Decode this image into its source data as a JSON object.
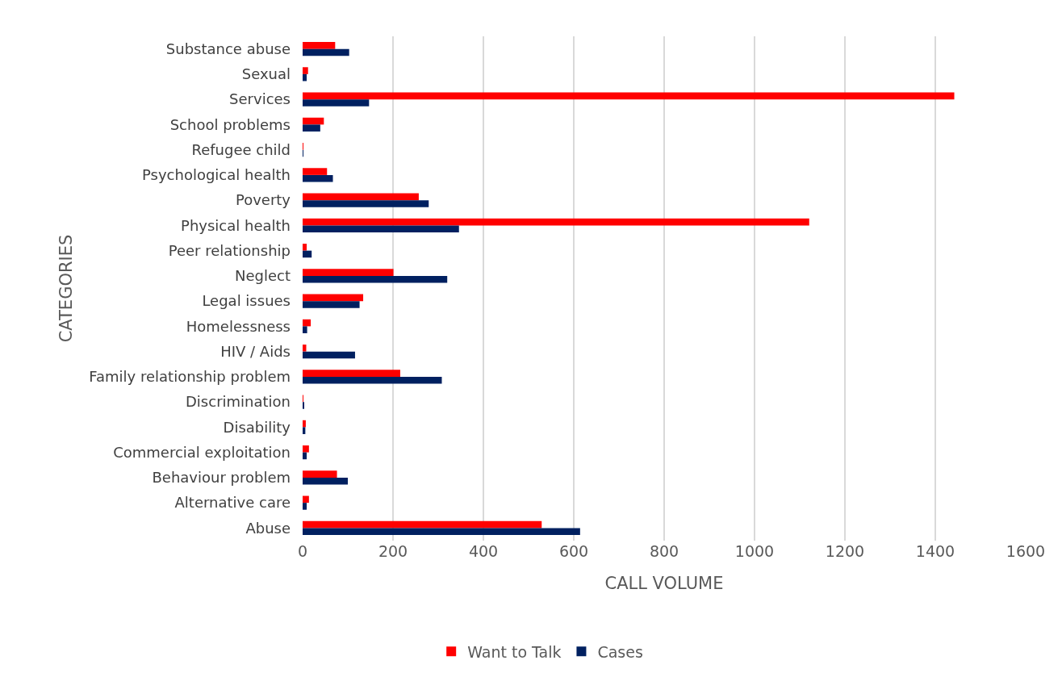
{
  "chart_data": {
    "type": "bar",
    "orientation": "horizontal",
    "xlabel": "CALL VOLUME",
    "ylabel": "CATEGORIES",
    "categories": [
      "Substance abuse",
      "Sexual",
      "Services",
      "School problems",
      "Refugee child",
      "Psychological health",
      "Poverty",
      "Physical health",
      "Peer relationship",
      "Neglect",
      "Legal issues",
      "Homelessness",
      "HIV / Aids",
      "Family relationship problem",
      "Discrimination",
      "Disability",
      "Commercial exploitation",
      "Behaviour problem",
      "Alternative care",
      "Abuse"
    ],
    "series": [
      {
        "name": "Want to Talk",
        "color": "#ff0000",
        "values": [
          72,
          12,
          1442,
          47,
          1,
          54,
          257,
          1121,
          9,
          201,
          134,
          18,
          8,
          216,
          1,
          7,
          14,
          76,
          14,
          529
        ]
      },
      {
        "name": "Cases",
        "color": "#002060",
        "values": [
          103,
          9,
          147,
          39,
          1,
          67,
          279,
          346,
          20,
          320,
          126,
          10,
          116,
          308,
          3,
          6,
          9,
          100,
          9,
          614
        ]
      }
    ],
    "xlim": [
      0,
      1600
    ],
    "xticks": [
      0,
      200,
      400,
      600,
      800,
      1000,
      1200,
      1400,
      1600
    ],
    "grid": "x",
    "legend": "bottom"
  }
}
